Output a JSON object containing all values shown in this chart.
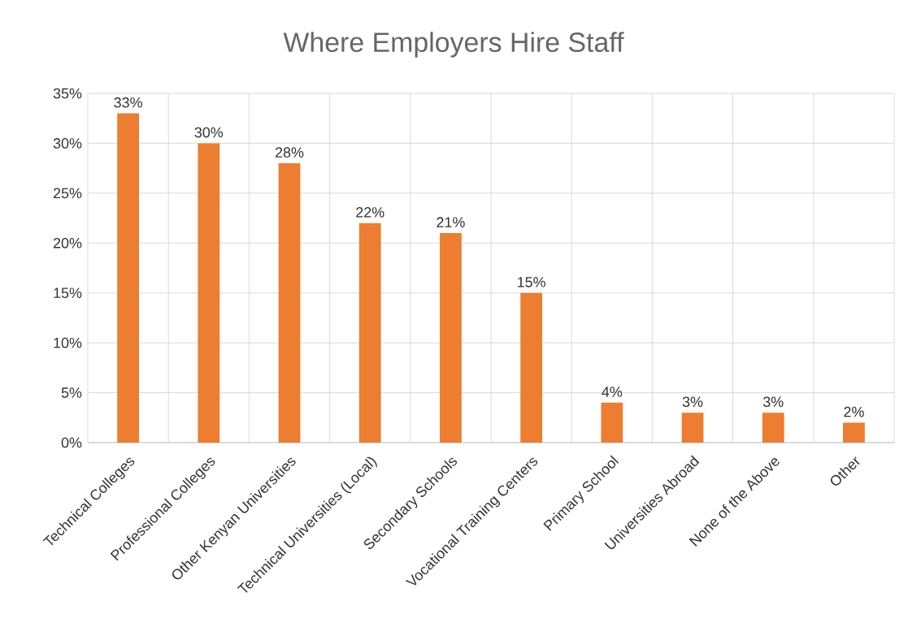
{
  "chart_data": {
    "type": "bar",
    "title": "Where Employers Hire Staff",
    "categories": [
      "Technical Colleges",
      "Professional Colleges",
      "Other Kenyan Universities",
      "Technical Universities (Local)",
      "Secondary Schools",
      "Vocational Training Centers",
      "Primary School",
      "Universities Abroad",
      "None of the Above",
      "Other"
    ],
    "values": [
      33,
      30,
      28,
      22,
      21,
      15,
      4,
      3,
      3,
      2
    ],
    "value_labels": [
      "33%",
      "30%",
      "28%",
      "22%",
      "21%",
      "15%",
      "4%",
      "3%",
      "3%",
      "2%"
    ],
    "color": "#ed7d31",
    "ylim": [
      0,
      35
    ],
    "yticks": [
      {
        "value": 0,
        "label": "0%"
      },
      {
        "value": 5,
        "label": "5%"
      },
      {
        "value": 10,
        "label": "10%"
      },
      {
        "value": 15,
        "label": "15%"
      },
      {
        "value": 20,
        "label": "20%"
      },
      {
        "value": 25,
        "label": "25%"
      },
      {
        "value": 30,
        "label": "30%"
      },
      {
        "value": 35,
        "label": "35%"
      }
    ],
    "grid": true
  }
}
